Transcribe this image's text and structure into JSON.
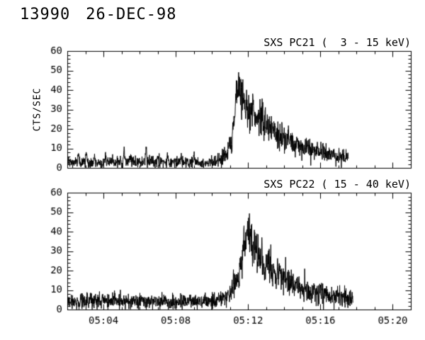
{
  "header": {
    "id": "13990",
    "date": "26-DEC-98"
  },
  "chart_data": [
    {
      "type": "line",
      "title": "SXS PC21 (  3 - 15 keV)",
      "ylabel": "CTS/SEC",
      "xlabel": "",
      "xlim": [
        2,
        21
      ],
      "ylim": [
        0,
        60
      ],
      "yticks": [
        0,
        10,
        20,
        30,
        40,
        50,
        60
      ],
      "y_minor_step": 2,
      "xticks": [
        {
          "value": 4,
          "label": "05:04"
        },
        {
          "value": 8,
          "label": "05:08"
        },
        {
          "value": 12,
          "label": "05:12"
        },
        {
          "value": 16,
          "label": "05:16"
        },
        {
          "value": 20,
          "label": "05:20"
        }
      ],
      "x_minor_step": 1,
      "x_labels_visible": false,
      "grid": false,
      "legend": false,
      "line_color": "#000000",
      "series": {
        "name": "counts",
        "t_start": 2.05,
        "t_end": 17.55,
        "dt": 0.013,
        "seed": 1234,
        "noise_scale": 0.9,
        "envelope": [
          [
            2.0,
            2.8
          ],
          [
            9.6,
            2.8
          ],
          [
            10.2,
            3.5
          ],
          [
            10.7,
            6
          ],
          [
            11.0,
            11
          ],
          [
            11.2,
            22
          ],
          [
            11.35,
            34
          ],
          [
            11.5,
            44
          ],
          [
            11.65,
            37
          ],
          [
            11.9,
            33
          ],
          [
            12.2,
            29
          ],
          [
            12.6,
            26
          ],
          [
            13.1,
            21
          ],
          [
            13.7,
            16.5
          ],
          [
            14.4,
            13
          ],
          [
            15.2,
            10
          ],
          [
            16.0,
            8
          ],
          [
            16.8,
            6.5
          ],
          [
            17.55,
            5
          ]
        ],
        "spikes": [
          [
            2.62,
            6
          ],
          [
            3.05,
            7
          ],
          [
            3.5,
            4
          ],
          [
            4.1,
            4
          ],
          [
            5.15,
            9
          ],
          [
            5.5,
            4
          ],
          [
            6.35,
            8
          ],
          [
            7.0,
            4
          ],
          [
            7.55,
            5
          ],
          [
            8.3,
            4
          ],
          [
            9.0,
            5
          ]
        ]
      }
    },
    {
      "type": "line",
      "title": "SXS PC22 ( 15 - 40 keV)",
      "ylabel": "",
      "xlabel": "",
      "xlim": [
        2,
        21
      ],
      "ylim": [
        0,
        60
      ],
      "yticks": [
        0,
        10,
        20,
        30,
        40,
        50,
        60
      ],
      "y_minor_step": 2,
      "xticks": [
        {
          "value": 4,
          "label": "05:04"
        },
        {
          "value": 8,
          "label": "05:08"
        },
        {
          "value": 12,
          "label": "05:12"
        },
        {
          "value": 16,
          "label": "05:16"
        },
        {
          "value": 20,
          "label": "05:20"
        }
      ],
      "x_minor_step": 1,
      "x_labels_visible": true,
      "grid": false,
      "legend": false,
      "line_color": "#000000",
      "series": {
        "name": "counts",
        "t_start": 2.05,
        "t_end": 17.8,
        "dt": 0.013,
        "seed": 5678,
        "noise_scale": 1.0,
        "envelope": [
          [
            2.0,
            3.8
          ],
          [
            4.0,
            4.5
          ],
          [
            5.0,
            4.2
          ],
          [
            9.8,
            3.8
          ],
          [
            10.5,
            5
          ],
          [
            11.0,
            8
          ],
          [
            11.4,
            14
          ],
          [
            11.7,
            27
          ],
          [
            11.9,
            38
          ],
          [
            12.0,
            44
          ],
          [
            12.15,
            36
          ],
          [
            12.4,
            30
          ],
          [
            12.8,
            26
          ],
          [
            13.3,
            21
          ],
          [
            13.9,
            16
          ],
          [
            14.6,
            12.5
          ],
          [
            15.4,
            10
          ],
          [
            16.2,
            8
          ],
          [
            17.0,
            6.5
          ],
          [
            17.8,
            5
          ]
        ],
        "spikes": [
          [
            3.3,
            3
          ],
          [
            4.6,
            4
          ],
          [
            6.1,
            3
          ],
          [
            7.4,
            3
          ],
          [
            8.8,
            3
          ],
          [
            9.6,
            3
          ]
        ]
      }
    }
  ]
}
